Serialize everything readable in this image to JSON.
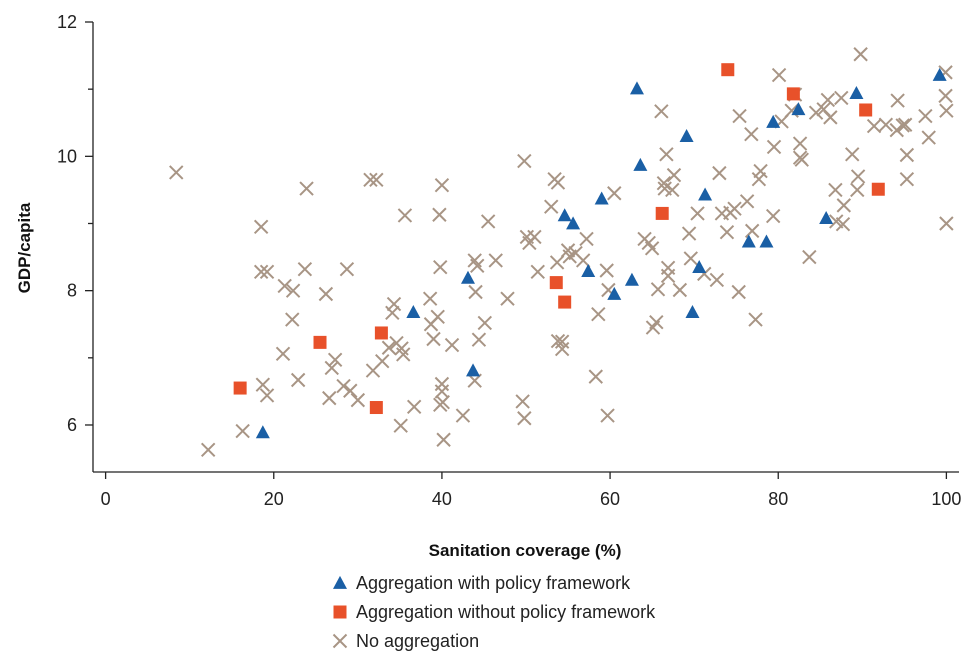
{
  "chart_data": {
    "type": "scatter",
    "xlabel": "Sanitation coverage (%)",
    "ylabel": "GDP/capita",
    "xlim": [
      -1.5,
      101.5
    ],
    "ylim": [
      5.3,
      12
    ],
    "xticks": [
      0,
      20,
      40,
      60,
      80,
      100
    ],
    "yticks": [
      6,
      8,
      10,
      12
    ],
    "grid": false,
    "legend_position": "bottom-center",
    "series": [
      {
        "name": "Aggregation with policy framework",
        "marker": "triangle",
        "color": "#1a5fa5",
        "points": [
          [
            18.7,
            5.89
          ],
          [
            36.6,
            7.68
          ],
          [
            43.1,
            8.19
          ],
          [
            43.7,
            6.81
          ],
          [
            54.6,
            9.12
          ],
          [
            55.6,
            9.0
          ],
          [
            57.4,
            8.29
          ],
          [
            59,
            9.37
          ],
          [
            60.5,
            7.95
          ],
          [
            62.6,
            8.16
          ],
          [
            63.2,
            11.01
          ],
          [
            63.6,
            9.87
          ],
          [
            69.1,
            10.3
          ],
          [
            69.8,
            7.68
          ],
          [
            70.6,
            8.35
          ],
          [
            71.3,
            9.43
          ],
          [
            76.5,
            8.73
          ],
          [
            78.6,
            8.73
          ],
          [
            79.4,
            10.51
          ],
          [
            82.4,
            10.7
          ],
          [
            85.7,
            9.08
          ],
          [
            89.3,
            10.94
          ],
          [
            99.2,
            11.21
          ]
        ]
      },
      {
        "name": "Aggregation without policy framework",
        "marker": "square",
        "color": "#e8512a",
        "points": [
          [
            16,
            6.55
          ],
          [
            25.5,
            7.23
          ],
          [
            32.2,
            6.26
          ],
          [
            32.8,
            7.37
          ],
          [
            53.6,
            8.12
          ],
          [
            54.6,
            7.83
          ],
          [
            66.2,
            9.15
          ],
          [
            74,
            11.29
          ],
          [
            81.8,
            10.93
          ],
          [
            90.4,
            10.69
          ],
          [
            91.9,
            9.51
          ]
        ]
      },
      {
        "name": "No aggregation",
        "marker": "x",
        "color": "#a89585",
        "points": [
          [
            8.4,
            9.76
          ],
          [
            12.2,
            5.63
          ],
          [
            16.3,
            5.91
          ],
          [
            18.5,
            8.95
          ],
          [
            18.5,
            8.28
          ],
          [
            19.2,
            8.28
          ],
          [
            18.7,
            6.6
          ],
          [
            19.2,
            6.44
          ],
          [
            21.1,
            7.06
          ],
          [
            21.3,
            8.07
          ],
          [
            22.2,
            7.57
          ],
          [
            22.3,
            8.0
          ],
          [
            22.9,
            6.67
          ],
          [
            23.7,
            8.32
          ],
          [
            23.9,
            9.52
          ],
          [
            26.2,
            7.95
          ],
          [
            26.6,
            6.4
          ],
          [
            26.9,
            6.85
          ],
          [
            27.3,
            6.97
          ],
          [
            28.3,
            6.58
          ],
          [
            28.7,
            8.32
          ],
          [
            29.1,
            6.51
          ],
          [
            30,
            6.37
          ],
          [
            31.5,
            9.65
          ],
          [
            31.8,
            6.81
          ],
          [
            32.2,
            9.65
          ],
          [
            32.9,
            6.95
          ],
          [
            33.7,
            7.15
          ],
          [
            34.1,
            7.67
          ],
          [
            34.3,
            7.8
          ],
          [
            34.6,
            7.22
          ],
          [
            35.1,
            5.99
          ],
          [
            35.2,
            7.14
          ],
          [
            35.6,
            9.12
          ],
          [
            35.4,
            7.05
          ],
          [
            36.7,
            6.27
          ],
          [
            38.6,
            7.88
          ],
          [
            38.7,
            7.5
          ],
          [
            39,
            7.28
          ],
          [
            39.5,
            7.61
          ],
          [
            39.7,
            9.13
          ],
          [
            39.8,
            6.3
          ],
          [
            39.8,
            8.35
          ],
          [
            40,
            9.57
          ],
          [
            40,
            6.61
          ],
          [
            40,
            6.5
          ],
          [
            40.1,
            6.34
          ],
          [
            40.2,
            5.78
          ],
          [
            41.2,
            7.19
          ],
          [
            42.5,
            6.14
          ],
          [
            43.9,
            8.45
          ],
          [
            43.9,
            6.66
          ],
          [
            44,
            7.98
          ],
          [
            44.2,
            8.37
          ],
          [
            44.4,
            7.27
          ],
          [
            45.1,
            7.52
          ],
          [
            45.5,
            9.03
          ],
          [
            46.4,
            8.45
          ],
          [
            47.8,
            7.88
          ],
          [
            49.6,
            6.35
          ],
          [
            49.8,
            6.1
          ],
          [
            49.8,
            9.93
          ],
          [
            50.1,
            8.8
          ],
          [
            50.4,
            8.71
          ],
          [
            51,
            8.8
          ],
          [
            51.4,
            8.28
          ],
          [
            53,
            9.25
          ],
          [
            53.4,
            9.66
          ],
          [
            53.7,
            8.42
          ],
          [
            53.8,
            9.61
          ],
          [
            53.8,
            7.25
          ],
          [
            54.3,
            7.13
          ],
          [
            54.3,
            7.24
          ],
          [
            55,
            8.6
          ],
          [
            55.2,
            8.51
          ],
          [
            55.9,
            8.56
          ],
          [
            56.8,
            8.45
          ],
          [
            57.2,
            8.77
          ],
          [
            58.3,
            6.72
          ],
          [
            58.6,
            7.65
          ],
          [
            59.6,
            8.3
          ],
          [
            59.7,
            6.14
          ],
          [
            59.8,
            8.01
          ],
          [
            60.5,
            9.45
          ],
          [
            64.1,
            8.77
          ],
          [
            64.6,
            8.71
          ],
          [
            65,
            8.63
          ],
          [
            65.1,
            7.45
          ],
          [
            65.5,
            7.53
          ],
          [
            65.7,
            8.02
          ],
          [
            66.1,
            10.67
          ],
          [
            66.4,
            9.6
          ],
          [
            66.5,
            9.52
          ],
          [
            66.7,
            10.03
          ],
          [
            66.9,
            8.22
          ],
          [
            66.9,
            8.34
          ],
          [
            67.4,
            9.5
          ],
          [
            67.6,
            9.72
          ],
          [
            68.3,
            8.01
          ],
          [
            69.4,
            8.85
          ],
          [
            69.6,
            8.48
          ],
          [
            70.4,
            9.15
          ],
          [
            71.2,
            8.25
          ],
          [
            72.7,
            8.16
          ],
          [
            73,
            9.75
          ],
          [
            73.3,
            9.15
          ],
          [
            73.9,
            8.87
          ],
          [
            74.3,
            9.16
          ],
          [
            74.8,
            9.22
          ],
          [
            75.3,
            7.98
          ],
          [
            75.4,
            10.6
          ],
          [
            76.3,
            9.33
          ],
          [
            76.8,
            10.33
          ],
          [
            76.9,
            8.89
          ],
          [
            77.3,
            7.57
          ],
          [
            77.7,
            9.66
          ],
          [
            77.9,
            9.78
          ],
          [
            79.4,
            9.11
          ],
          [
            79.5,
            10.14
          ],
          [
            80.1,
            11.21
          ],
          [
            80.4,
            10.52
          ],
          [
            81.6,
            10.68
          ],
          [
            82,
            10.92
          ],
          [
            82.6,
            10.19
          ],
          [
            82.6,
            9.98
          ],
          [
            82.8,
            9.95
          ],
          [
            83.7,
            8.5
          ],
          [
            84.5,
            10.65
          ],
          [
            85.4,
            10.7
          ],
          [
            85.9,
            10.84
          ],
          [
            86.2,
            10.58
          ],
          [
            86.8,
            9.5
          ],
          [
            86.9,
            9.03
          ],
          [
            87.5,
            10.87
          ],
          [
            87.7,
            8.99
          ],
          [
            87.8,
            9.27
          ],
          [
            88.8,
            10.03
          ],
          [
            89.4,
            9.5
          ],
          [
            89.5,
            9.7
          ],
          [
            89.8,
            11.52
          ],
          [
            91.4,
            10.45
          ],
          [
            92.8,
            10.47
          ],
          [
            94.1,
            10.39
          ],
          [
            94.2,
            10.83
          ],
          [
            94.8,
            10.46
          ],
          [
            95.1,
            10.47
          ],
          [
            95.3,
            10.02
          ],
          [
            95.3,
            9.66
          ],
          [
            97.5,
            10.6
          ],
          [
            97.9,
            10.28
          ],
          [
            99.9,
            11.25
          ],
          [
            99.9,
            10.9
          ],
          [
            100,
            10.68
          ],
          [
            100,
            9.0
          ]
        ]
      }
    ]
  }
}
